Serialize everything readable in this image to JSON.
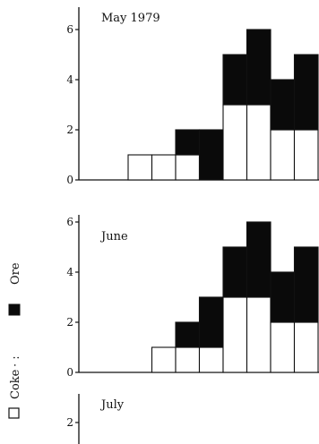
{
  "chart_data": {
    "type": "bar",
    "stacked": true,
    "colors": {
      "Coke": "#ffffff",
      "Ore": "#0a0a0a",
      "edge": "#111111"
    },
    "legend": {
      "placement": "left, rotated vertical",
      "entries": [
        {
          "name": "Coke",
          "label": "Coke",
          "color": "#ffffff",
          "extra": "· :"
        },
        {
          "name": "Ore",
          "label": "Ore",
          "color": "#0a0a0a"
        }
      ]
    },
    "ylim": [
      0,
      6
    ],
    "yticks": [
      "0",
      "2",
      "4",
      "6"
    ],
    "panels": [
      {
        "title": "May 1979",
        "series": [
          {
            "name": "Coke",
            "values": [
              0,
              0,
              1,
              1,
              1,
              0,
              3,
              3,
              2,
              2
            ]
          },
          {
            "name": "Ore",
            "values": [
              0,
              0,
              0,
              0,
              1,
              2,
              2,
              3,
              2,
              3
            ]
          }
        ]
      },
      {
        "title": "June",
        "series": [
          {
            "name": "Coke",
            "values": [
              0,
              0,
              0,
              1,
              1,
              1,
              3,
              3,
              2,
              2
            ]
          },
          {
            "name": "Ore",
            "values": [
              0,
              0,
              0,
              0,
              1,
              2,
              2,
              3,
              2,
              3
            ]
          }
        ]
      },
      {
        "title": "July",
        "series": []
      }
    ]
  }
}
